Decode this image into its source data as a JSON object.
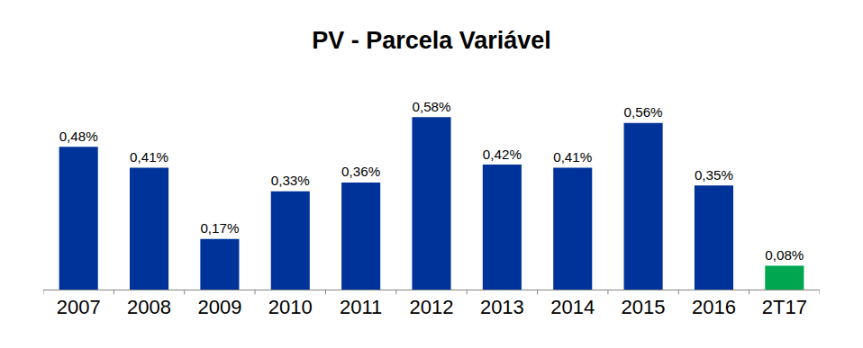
{
  "chart_data": {
    "type": "bar",
    "title": "PV - Parcela Variável",
    "categories": [
      "2007",
      "2008",
      "2009",
      "2010",
      "2011",
      "2012",
      "2013",
      "2014",
      "2015",
      "2016",
      "2T17"
    ],
    "values": [
      0.48,
      0.41,
      0.17,
      0.33,
      0.36,
      0.58,
      0.42,
      0.41,
      0.56,
      0.35,
      0.08
    ],
    "value_labels": [
      "0,48%",
      "0,41%",
      "0,17%",
      "0,33%",
      "0,36%",
      "0,58%",
      "0,42%",
      "0,41%",
      "0,56%",
      "0,35%",
      "0,08%"
    ],
    "colors": [
      "#003399",
      "#003399",
      "#003399",
      "#003399",
      "#003399",
      "#003399",
      "#003399",
      "#003399",
      "#003399",
      "#003399",
      "#00A650"
    ],
    "ylim": [
      0,
      0.65
    ],
    "data_labels": true,
    "tick_labels": "x",
    "grid": false
  }
}
